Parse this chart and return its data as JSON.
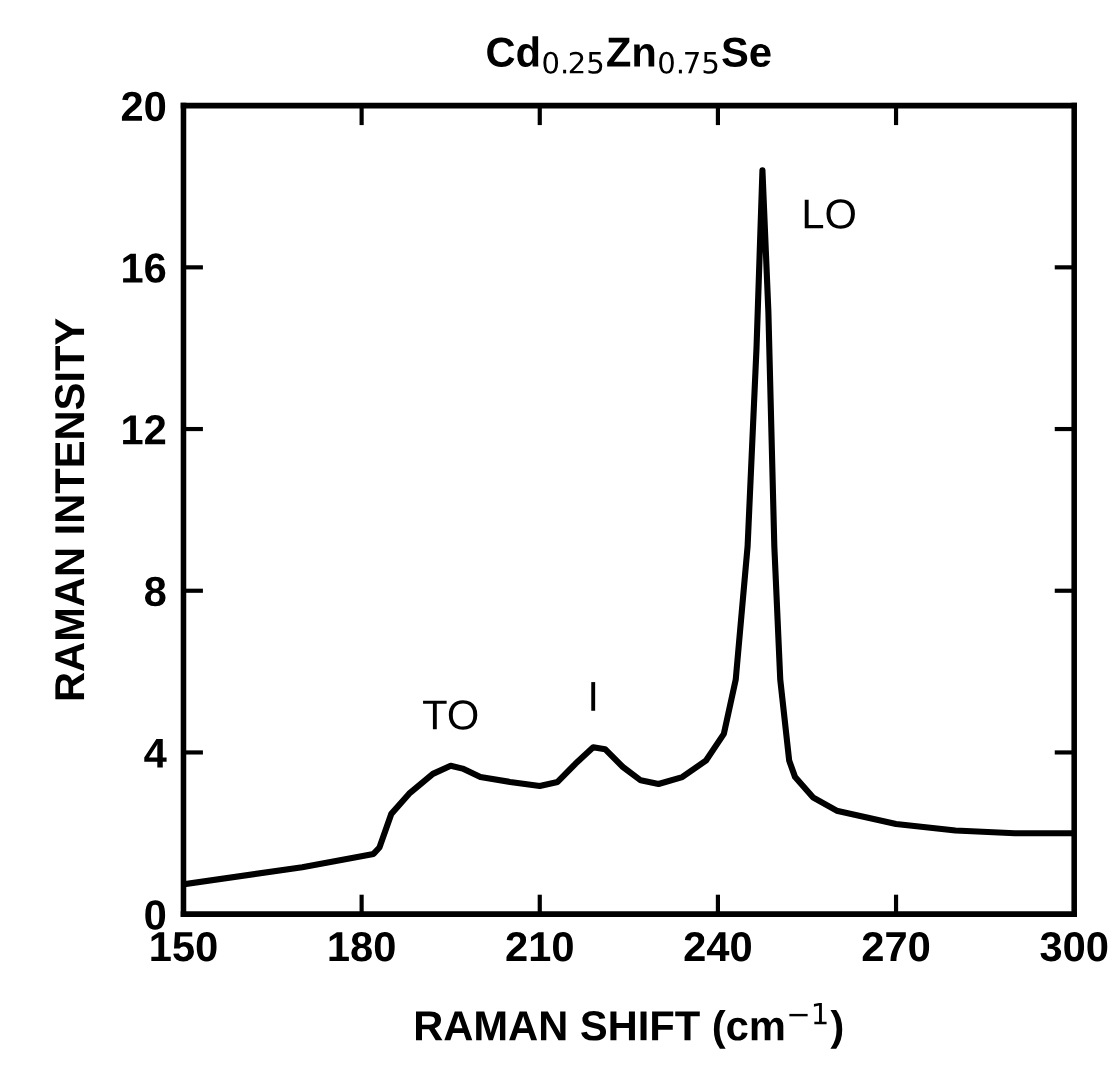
{
  "chart_data": {
    "type": "line",
    "title": "Cd$_{0.25}$Zn$_{0.75}$Se",
    "xlabel": "RAMAN SHIFT (cm$^{−1}$)",
    "ylabel": "RAMAN INTENSITY",
    "xlim": [
      150,
      300
    ],
    "xticks": [
      150,
      180,
      210,
      240,
      270,
      300
    ],
    "ylim": [
      0,
      20
    ],
    "yticks": [
      0,
      4,
      8,
      12,
      16,
      20
    ],
    "grid": false,
    "marker": "none",
    "line_style": "solid",
    "annotations": [
      {
        "text": "TO",
        "x": 195,
        "y": 3.67
      },
      {
        "text": "I",
        "x": 219,
        "y": 4.13
      },
      {
        "text": "LO",
        "x": 247.5,
        "y": 18.4
      }
    ],
    "series": [
      {
        "color": "#000000",
        "x": [
          150,
          170,
          182,
          183,
          185,
          188,
          192,
          195,
          197,
          200,
          205,
          210,
          213,
          216,
          219,
          221,
          224,
          227,
          230,
          234,
          238,
          241,
          243,
          245,
          246.5,
          247.5,
          248.5,
          249.5,
          250.5,
          252,
          253,
          256,
          260,
          270,
          280,
          290,
          300
        ],
        "values": [
          0.74,
          1.16,
          1.49,
          1.65,
          2.48,
          2.98,
          3.47,
          3.67,
          3.6,
          3.39,
          3.27,
          3.17,
          3.27,
          3.72,
          4.13,
          4.08,
          3.64,
          3.31,
          3.22,
          3.39,
          3.8,
          4.46,
          5.8,
          9.1,
          14.0,
          18.4,
          14.9,
          9.1,
          5.8,
          3.8,
          3.39,
          2.89,
          2.56,
          2.23,
          2.07,
          2.0,
          2.0
        ]
      }
    ]
  }
}
